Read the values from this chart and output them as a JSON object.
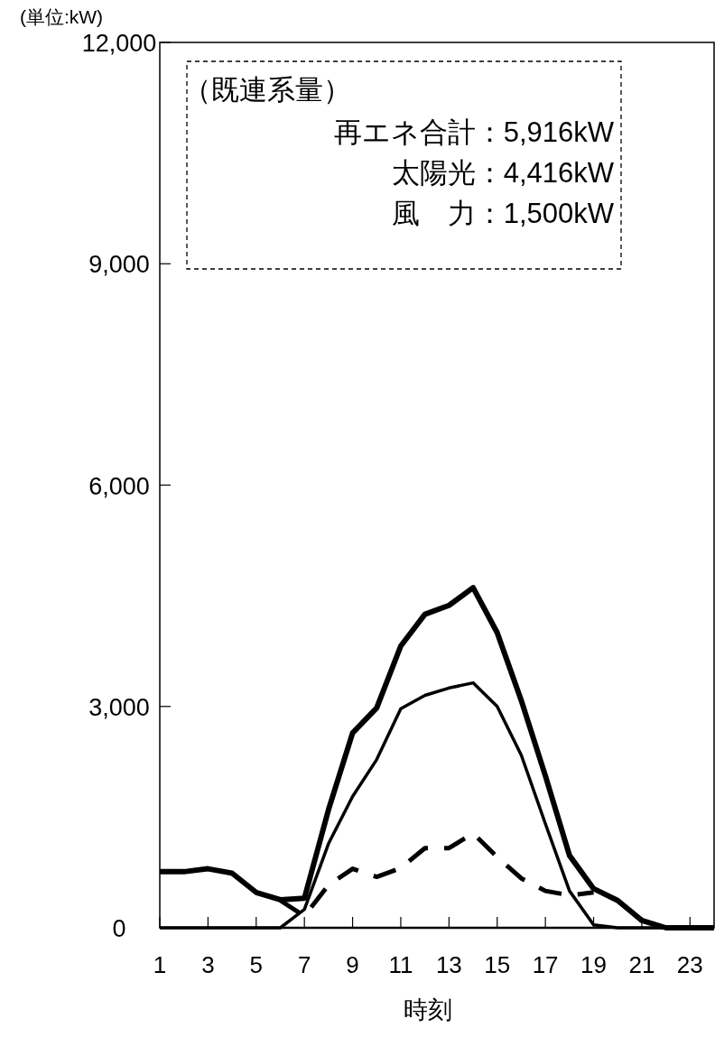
{
  "chart_data": {
    "type": "line",
    "xlabel": "時刻",
    "ylabel": "(単位:kW)",
    "x": [
      1,
      2,
      3,
      4,
      5,
      6,
      7,
      8,
      9,
      10,
      11,
      12,
      13,
      14,
      15,
      16,
      17,
      18,
      19,
      20,
      21,
      22,
      23,
      24
    ],
    "series": [
      {
        "color": "#000000",
        "line_style": "solid",
        "values": [
          760,
          760,
          800,
          740,
          480,
          380,
          400,
          1600,
          2640,
          2980,
          3820,
          4250,
          4370,
          4610,
          4000,
          3080,
          2060,
          980,
          530,
          370,
          100,
          0,
          0,
          0
        ]
      },
      {
        "color": "#000000",
        "line_style": "solid",
        "values": [
          0,
          0,
          0,
          0,
          0,
          0,
          250,
          1140,
          1780,
          2280,
          2970,
          3150,
          3250,
          3320,
          3000,
          2340,
          1410,
          500,
          40,
          0,
          0,
          0,
          0,
          0
        ]
      },
      {
        "color": "#000000",
        "line_style": "dashed",
        "values": [
          null,
          null,
          null,
          null,
          null,
          370,
          160,
          580,
          800,
          690,
          810,
          1080,
          1080,
          1280,
          960,
          670,
          500,
          440,
          480,
          null,
          null,
          null,
          null,
          null
        ]
      }
    ],
    "xlim": [
      1,
      24
    ],
    "ylim": [
      0,
      12000
    ],
    "xticks": [
      1,
      3,
      5,
      7,
      9,
      11,
      13,
      15,
      17,
      19,
      21,
      23
    ],
    "yticks": [
      0,
      {
        "value": 3000,
        "label": "3,000"
      },
      {
        "value": 6000,
        "label": "6,000"
      },
      {
        "value": 9000,
        "label": "9,000"
      },
      {
        "value": 12000,
        "label": "12,000"
      }
    ],
    "grid": false,
    "marker": "none",
    "annotations": [
      "（既連系量）",
      "再エネ合計：5,916kW",
      "太陽光：4,416kW",
      "風　力：1,500kW"
    ]
  }
}
